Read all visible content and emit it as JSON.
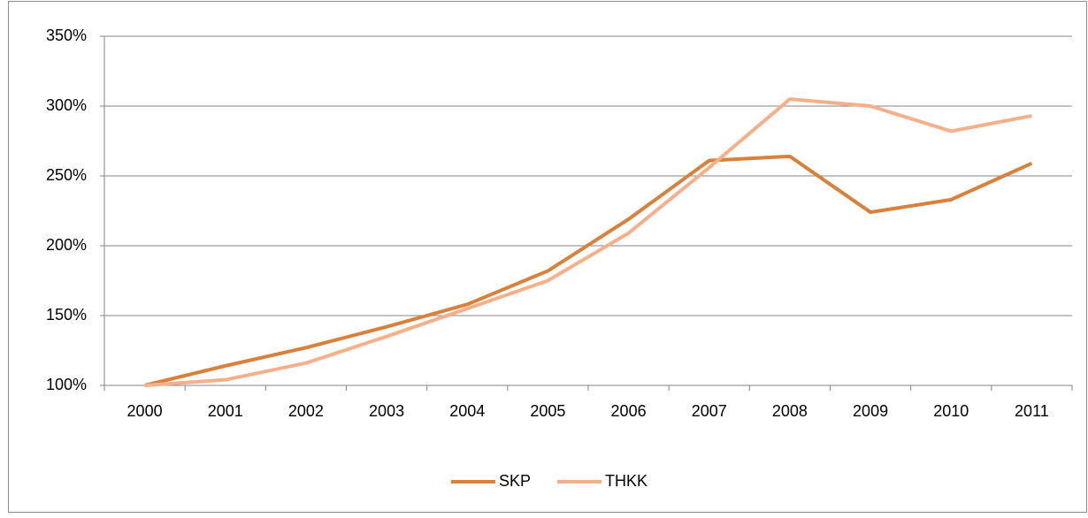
{
  "chart_data": {
    "type": "line",
    "categories": [
      "2000",
      "2001",
      "2002",
      "2003",
      "2004",
      "2005",
      "2006",
      "2007",
      "2008",
      "2009",
      "2010",
      "2011"
    ],
    "series": [
      {
        "name": "SKP",
        "color": "#d9803a",
        "values": [
          100,
          114,
          127,
          142,
          158,
          182,
          219,
          261,
          264,
          224,
          233,
          259
        ]
      },
      {
        "name": "THKK",
        "color": "#f5b08a",
        "values": [
          100,
          104,
          116,
          135,
          155,
          175,
          209,
          256,
          305,
          300,
          282,
          293
        ]
      }
    ],
    "ylim": [
      100,
      350
    ],
    "yticks": [
      {
        "value": 100,
        "label": "100%"
      },
      {
        "value": 150,
        "label": "150%"
      },
      {
        "value": 200,
        "label": "200%"
      },
      {
        "value": 250,
        "label": "250%"
      },
      {
        "value": 300,
        "label": "300%"
      },
      {
        "value": 350,
        "label": "350%"
      }
    ],
    "grid": true,
    "legend": "bottom"
  }
}
